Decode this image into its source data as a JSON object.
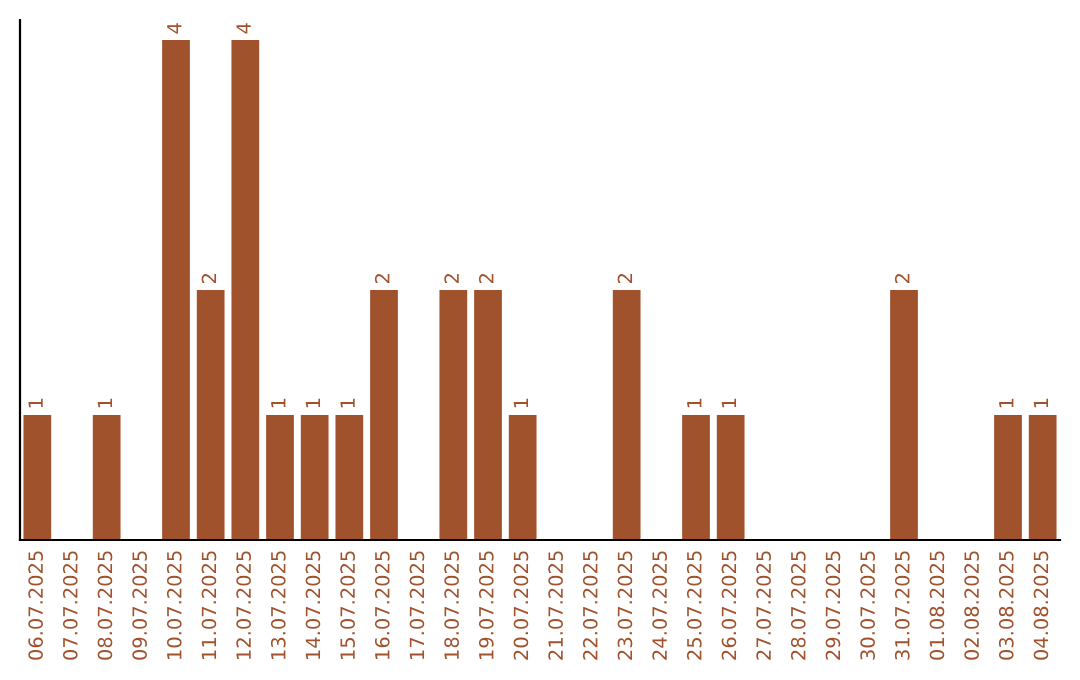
{
  "chart_data": {
    "type": "bar",
    "categories": [
      "06.07.2025",
      "07.07.2025",
      "08.07.2025",
      "09.07.2025",
      "10.07.2025",
      "11.07.2025",
      "12.07.2025",
      "13.07.2025",
      "14.07.2025",
      "15.07.2025",
      "16.07.2025",
      "17.07.2025",
      "18.07.2025",
      "19.07.2025",
      "20.07.2025",
      "21.07.2025",
      "22.07.2025",
      "23.07.2025",
      "24.07.2025",
      "25.07.2025",
      "26.07.2025",
      "27.07.2025",
      "28.07.2025",
      "29.07.2025",
      "30.07.2025",
      "31.07.2025",
      "01.08.2025",
      "02.08.2025",
      "03.08.2025",
      "04.08.2025"
    ],
    "values": [
      1,
      0,
      1,
      0,
      4,
      2,
      4,
      1,
      1,
      1,
      2,
      0,
      2,
      2,
      1,
      0,
      0,
      2,
      0,
      1,
      1,
      0,
      0,
      0,
      0,
      2,
      0,
      0,
      1,
      1
    ],
    "value_labels": [
      "1",
      null,
      "1",
      null,
      "4",
      "2",
      "4",
      "1",
      "1",
      "1",
      "2",
      null,
      "2",
      "2",
      "1",
      null,
      null,
      "2",
      null,
      "1",
      "1",
      null,
      null,
      null,
      null,
      "2",
      null,
      null,
      "1",
      "1"
    ],
    "color": "#a0522d",
    "ylim": [
      0,
      4.16
    ],
    "tick_labels": "x",
    "grid": false,
    "legend": false
  }
}
